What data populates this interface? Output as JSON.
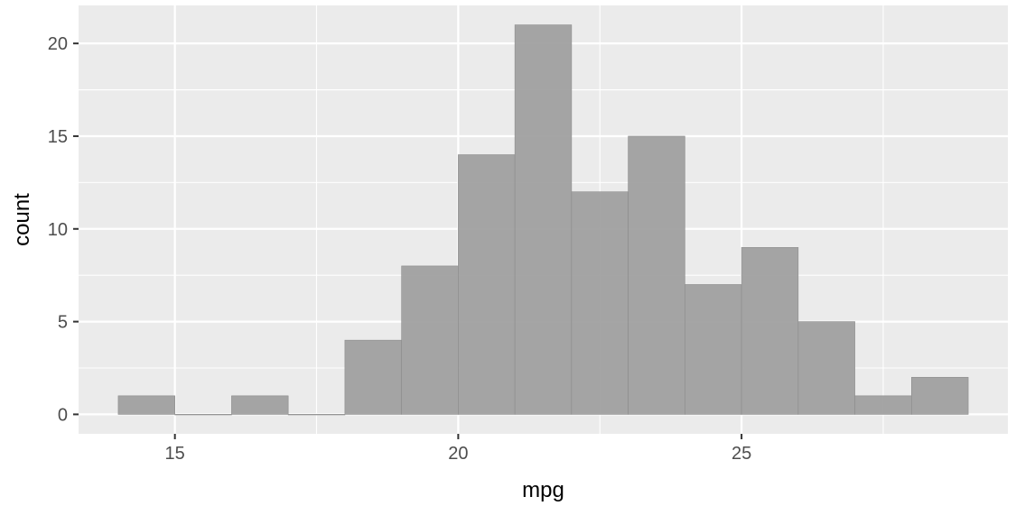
{
  "chart_data": {
    "type": "bar",
    "subtype": "histogram",
    "title": "",
    "xlabel": "mpg",
    "ylabel": "count",
    "bin_width": 1,
    "bins": [
      {
        "x0": 14,
        "x1": 15,
        "count": 1
      },
      {
        "x0": 15,
        "x1": 16,
        "count": 0
      },
      {
        "x0": 16,
        "x1": 17,
        "count": 1
      },
      {
        "x0": 17,
        "x1": 18,
        "count": 0
      },
      {
        "x0": 18,
        "x1": 19,
        "count": 4
      },
      {
        "x0": 19,
        "x1": 20,
        "count": 8
      },
      {
        "x0": 20,
        "x1": 21,
        "count": 14
      },
      {
        "x0": 21,
        "x1": 22,
        "count": 21
      },
      {
        "x0": 22,
        "x1": 23,
        "count": 12
      },
      {
        "x0": 23,
        "x1": 24,
        "count": 15
      },
      {
        "x0": 24,
        "x1": 25,
        "count": 7
      },
      {
        "x0": 25,
        "x1": 26,
        "count": 9
      },
      {
        "x0": 26,
        "x1": 27,
        "count": 5
      },
      {
        "x0": 27,
        "x1": 28,
        "count": 1
      },
      {
        "x0": 28,
        "x1": 29,
        "count": 2
      }
    ],
    "xlim": [
      13.3,
      29.7
    ],
    "ylim": [
      -1.05,
      22.05
    ],
    "x_ticks": [
      15,
      20,
      25
    ],
    "x_minor_ticks": [
      17.5,
      22.5,
      27.5
    ],
    "y_ticks": [
      0,
      5,
      10,
      15,
      20
    ],
    "y_minor_ticks": [
      2.5,
      7.5,
      12.5,
      17.5
    ],
    "grid": true,
    "legend": "none",
    "colors": {
      "panel_background": "#ebebeb",
      "gridline": "#ffffff",
      "bar_fill": "#a0a0a0",
      "bar_edge": "#8c8c8c",
      "tick_label": "#4d4d4d",
      "tick_mark": "#333333",
      "axis_title": "#000000"
    }
  }
}
